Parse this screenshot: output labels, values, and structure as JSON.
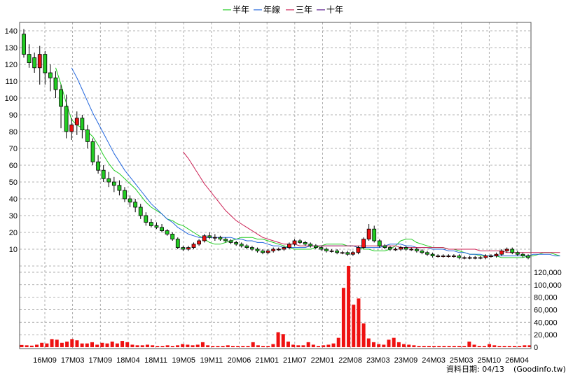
{
  "chart_data": {
    "type": "candlestick",
    "title": "",
    "legend": {
      "placement": "top-center",
      "entries": [
        {
          "name": "半年",
          "color": "#22cc22"
        },
        {
          "name": "年線",
          "color": "#2266dd"
        },
        {
          "name": "三年",
          "color": "#cc2255"
        },
        {
          "name": "十年",
          "color": "#551188"
        }
      ]
    },
    "grid": true,
    "price_axis": {
      "ylim": [
        0,
        145
      ],
      "ticks": [
        10,
        20,
        30,
        40,
        50,
        60,
        70,
        80,
        90,
        100,
        110,
        120,
        130,
        140
      ]
    },
    "volume_axis": {
      "ylim": [
        0,
        130000
      ],
      "ticks": [
        0,
        20000,
        40000,
        60000,
        80000,
        100000,
        120000
      ],
      "tick_labels": [
        "0",
        "20,000",
        "40,000",
        "60,000",
        "80,000",
        "100,000",
        "120,000"
      ]
    },
    "x_ticks": [
      "16M09",
      "17M03",
      "17M09",
      "18M04",
      "18M11",
      "19M05",
      "19M11",
      "20M06",
      "21M01",
      "21M07",
      "22M01",
      "22M08",
      "23M03",
      "23M09",
      "24M03",
      "25M03",
      "25M10",
      "26M04"
    ],
    "candles": [
      [
        138,
        141,
        124,
        126
      ],
      [
        126,
        132,
        118,
        121
      ],
      [
        124,
        127,
        115,
        118
      ],
      [
        118,
        131,
        108,
        126
      ],
      [
        126,
        128,
        108,
        115
      ],
      [
        115,
        120,
        104,
        112
      ],
      [
        112,
        116,
        100,
        105
      ],
      [
        105,
        108,
        82,
        95
      ],
      [
        95,
        102,
        76,
        80
      ],
      [
        80,
        88,
        75,
        84
      ],
      [
        84,
        92,
        78,
        88
      ],
      [
        88,
        90,
        76,
        81
      ],
      [
        81,
        84,
        70,
        74
      ],
      [
        74,
        76,
        60,
        62
      ],
      [
        62,
        66,
        55,
        57
      ],
      [
        57,
        60,
        50,
        52
      ],
      [
        52,
        56,
        47,
        50
      ],
      [
        50,
        53,
        44,
        48
      ],
      [
        48,
        51,
        42,
        45
      ],
      [
        45,
        47,
        38,
        40
      ],
      [
        40,
        42,
        35,
        38
      ],
      [
        38,
        40,
        32,
        35
      ],
      [
        35,
        37,
        28,
        30
      ],
      [
        30,
        32,
        24,
        26
      ],
      [
        26,
        28,
        23,
        24
      ],
      [
        24,
        26,
        22,
        23
      ],
      [
        23,
        25,
        20,
        21
      ],
      [
        21,
        22,
        18,
        19
      ],
      [
        19,
        20,
        15,
        16
      ],
      [
        16,
        17,
        10,
        11
      ],
      [
        11,
        12,
        9,
        10
      ],
      [
        10,
        12,
        9,
        11
      ],
      [
        11,
        14,
        10,
        13
      ],
      [
        13,
        16,
        12,
        15
      ],
      [
        15,
        19,
        14,
        18
      ],
      [
        18,
        20,
        16,
        17
      ],
      [
        17,
        19,
        15,
        17
      ],
      [
        17,
        18,
        15,
        16
      ],
      [
        16,
        17,
        14,
        15
      ],
      [
        15,
        16,
        13,
        14
      ],
      [
        14,
        15,
        12,
        13
      ],
      [
        13,
        14,
        11,
        12
      ],
      [
        12,
        13,
        10,
        11
      ],
      [
        11,
        12,
        9,
        10
      ],
      [
        10,
        11,
        8,
        9
      ],
      [
        9,
        10,
        7,
        8
      ],
      [
        8,
        10,
        7,
        9
      ],
      [
        9,
        11,
        8,
        10
      ],
      [
        10,
        11,
        9,
        10
      ],
      [
        10,
        12,
        9,
        11
      ],
      [
        11,
        14,
        10,
        13
      ],
      [
        13,
        16,
        12,
        15
      ],
      [
        15,
        16,
        13,
        14
      ],
      [
        14,
        15,
        12,
        13
      ],
      [
        13,
        14,
        11,
        12
      ],
      [
        12,
        13,
        10,
        11
      ],
      [
        11,
        12,
        9,
        10
      ],
      [
        10,
        11,
        8,
        9
      ],
      [
        9,
        10,
        8,
        9
      ],
      [
        9,
        10,
        7,
        8
      ],
      [
        8,
        9,
        7,
        8
      ],
      [
        8,
        9,
        6,
        7
      ],
      [
        7,
        9,
        6,
        8
      ],
      [
        8,
        12,
        7,
        11
      ],
      [
        11,
        17,
        10,
        16
      ],
      [
        16,
        25,
        15,
        22
      ],
      [
        22,
        24,
        14,
        15
      ],
      [
        15,
        16,
        11,
        12
      ],
      [
        12,
        13,
        10,
        11
      ],
      [
        11,
        12,
        9,
        10
      ],
      [
        10,
        11,
        9,
        10
      ],
      [
        10,
        12,
        9,
        11
      ],
      [
        11,
        12,
        9,
        10
      ],
      [
        10,
        11,
        9,
        10
      ],
      [
        10,
        11,
        8,
        9
      ],
      [
        9,
        10,
        7,
        8
      ],
      [
        8,
        9,
        6,
        7
      ],
      [
        7,
        8,
        5,
        6
      ],
      [
        6,
        7,
        5,
        6
      ],
      [
        6,
        7,
        5,
        6
      ],
      [
        6,
        7,
        5,
        6
      ],
      [
        6,
        7,
        5,
        6
      ],
      [
        6,
        7,
        4,
        5
      ],
      [
        5,
        6,
        4,
        5
      ],
      [
        5,
        6,
        4,
        5
      ],
      [
        5,
        6,
        4,
        5
      ],
      [
        5,
        6,
        4,
        5
      ],
      [
        5,
        7,
        4,
        6
      ],
      [
        6,
        7,
        5,
        6
      ],
      [
        6,
        8,
        5,
        7
      ],
      [
        7,
        10,
        6,
        9
      ],
      [
        9,
        11,
        8,
        10
      ],
      [
        10,
        11,
        7,
        8
      ],
      [
        8,
        9,
        6,
        7
      ],
      [
        7,
        8,
        5,
        6
      ],
      [
        6,
        7,
        4,
        5
      ]
    ],
    "volume": [
      3500,
      3000,
      2500,
      4000,
      7000,
      6000,
      13000,
      12000,
      7000,
      9000,
      13000,
      11000,
      6000,
      6000,
      8000,
      4000,
      7000,
      6000,
      9000,
      6000,
      10000,
      8000,
      4000,
      3000,
      3000,
      4000,
      3000,
      2000,
      2000,
      3000,
      2000,
      3000,
      5000,
      4000,
      3000,
      4000,
      8000,
      3000,
      2000,
      2000,
      2000,
      3000,
      2000,
      2000,
      2000,
      2000,
      8000,
      3000,
      2000,
      2000,
      5000,
      24000,
      21000,
      9000,
      4000,
      3000,
      3000,
      8000,
      4000,
      2000,
      3000,
      4000,
      6000,
      15000,
      95000,
      130000,
      68000,
      78000,
      38000,
      14000,
      8000,
      5000,
      4000,
      12000,
      15000,
      8000,
      5000,
      4000,
      3000,
      2000,
      2000,
      2000,
      2000,
      2000,
      2000,
      2000,
      2000,
      2000,
      2000,
      9000,
      4000,
      2000,
      2000,
      5000,
      3000,
      2000,
      2000,
      2000,
      2000,
      2000,
      3000,
      3000
    ],
    "ma_series": [
      {
        "name": "半年",
        "start_index": 6,
        "values": [
          118,
          108,
          97,
          87,
          84,
          82,
          80,
          77,
          72,
          66,
          61,
          57,
          55,
          52,
          49,
          46,
          42,
          38,
          35,
          33,
          31,
          28,
          27,
          25,
          24,
          22,
          20,
          18,
          16,
          14,
          13,
          13,
          14,
          15,
          16,
          17,
          17,
          17,
          16,
          16,
          15,
          14,
          13,
          12,
          11,
          10,
          10,
          10,
          10,
          11,
          12,
          13,
          13,
          13,
          13,
          12,
          12,
          11,
          10,
          10,
          9,
          9,
          9,
          10,
          12,
          15,
          16,
          16,
          14,
          13,
          12,
          11,
          11,
          11,
          10,
          10,
          9,
          8,
          7,
          7,
          6,
          6,
          6,
          6,
          5,
          5,
          5,
          5,
          5,
          6,
          6,
          7,
          8,
          8,
          7,
          6
        ]
      },
      {
        "name": "年線",
        "start_index": 9,
        "values": [
          118,
          112,
          105,
          98,
          91,
          85,
          79,
          73,
          67,
          62,
          57,
          53,
          49,
          45,
          41,
          37,
          34,
          31,
          28,
          26,
          23,
          21,
          19,
          18,
          17,
          17,
          17,
          17,
          17,
          17,
          17,
          16,
          16,
          15,
          15,
          14,
          14,
          13,
          12,
          12,
          11,
          11,
          11,
          11,
          11,
          12,
          12,
          12,
          12,
          12,
          12,
          12,
          12,
          12,
          11,
          11,
          11,
          11,
          11,
          12,
          13,
          13,
          13,
          12,
          12,
          11,
          11,
          11,
          10,
          10,
          10,
          9,
          9,
          8,
          8,
          7,
          7,
          7,
          6,
          6,
          6,
          6,
          6,
          6,
          6,
          6,
          6,
          7,
          7,
          7,
          7,
          6,
          6
        ]
      },
      {
        "name": "三年",
        "start_index": 30,
        "values": [
          68,
          64,
          59,
          54,
          49,
          45,
          41,
          37,
          33,
          30,
          27,
          25,
          23,
          21,
          19,
          17,
          16,
          15,
          14,
          13,
          13,
          13,
          12,
          12,
          12,
          12,
          12,
          12,
          12,
          12,
          12,
          12,
          12,
          12,
          12,
          12,
          12,
          12,
          12,
          12,
          12,
          11,
          11,
          11,
          11,
          11,
          11,
          11,
          11,
          11,
          10,
          10,
          10,
          10,
          10,
          10,
          9,
          9,
          9,
          9,
          9,
          8,
          8,
          8,
          8,
          8,
          8,
          8,
          8,
          8,
          8,
          8
        ]
      },
      {
        "name": "十年",
        "start_index": 0,
        "values": []
      }
    ]
  },
  "footer": {
    "date_label": "資料日期: 04/13",
    "source": "(Goodinfo.tw)"
  }
}
